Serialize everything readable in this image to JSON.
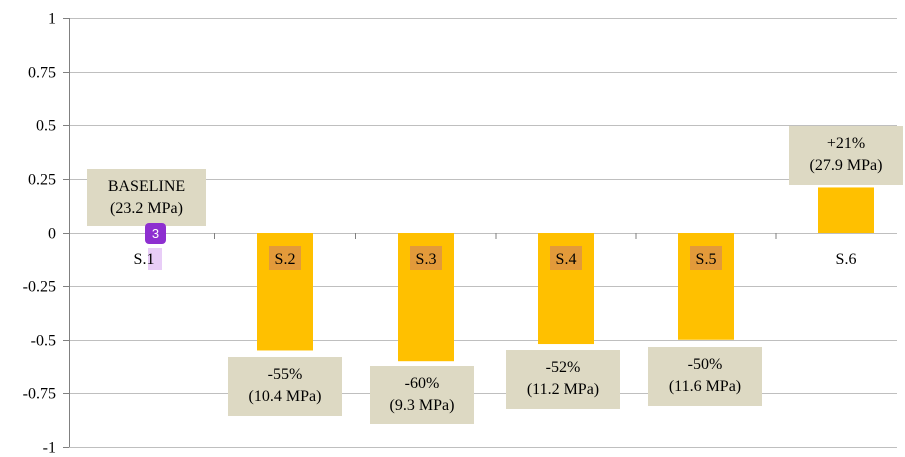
{
  "chart_data": {
    "type": "bar",
    "categories": [
      "S.1",
      "S.2",
      "S.3",
      "S.4",
      "S.5",
      "S.6"
    ],
    "values": [
      0,
      -0.55,
      -0.6,
      -0.52,
      -0.5,
      0.21
    ],
    "ylim": [
      -1,
      1
    ],
    "y_ticks": [
      "1",
      "0.75",
      "0.5",
      "0.25",
      "0",
      "-0.25",
      "-0.5",
      "-0.75",
      "-1"
    ],
    "y_tick_values": [
      1,
      0.75,
      0.5,
      0.25,
      0,
      -0.25,
      -0.5,
      -0.75,
      -1
    ],
    "grid": true,
    "annotations": [
      {
        "category": "S.1",
        "lines": [
          "BASELINE",
          "(23.2 MPa)"
        ]
      },
      {
        "category": "S.2",
        "lines": [
          "-55%",
          "(10.4 MPa)"
        ]
      },
      {
        "category": "S.3",
        "lines": [
          "-60%",
          "(9.3 MPa)"
        ]
      },
      {
        "category": "S.4",
        "lines": [
          "-52%",
          "(11.2 MPa)"
        ]
      },
      {
        "category": "S.5",
        "lines": [
          "-50%",
          "(11.6 MPa)"
        ]
      },
      {
        "category": "S.6",
        "lines": [
          "+21%",
          "(27.9 MPa)"
        ]
      }
    ],
    "colors": {
      "bar": "#ffc000",
      "annotation_box": "#ddd9c3",
      "category_highlight": "#e39a3a"
    }
  },
  "overlay": {
    "badge_text": "3",
    "badge_color": "#8e2fd0"
  }
}
